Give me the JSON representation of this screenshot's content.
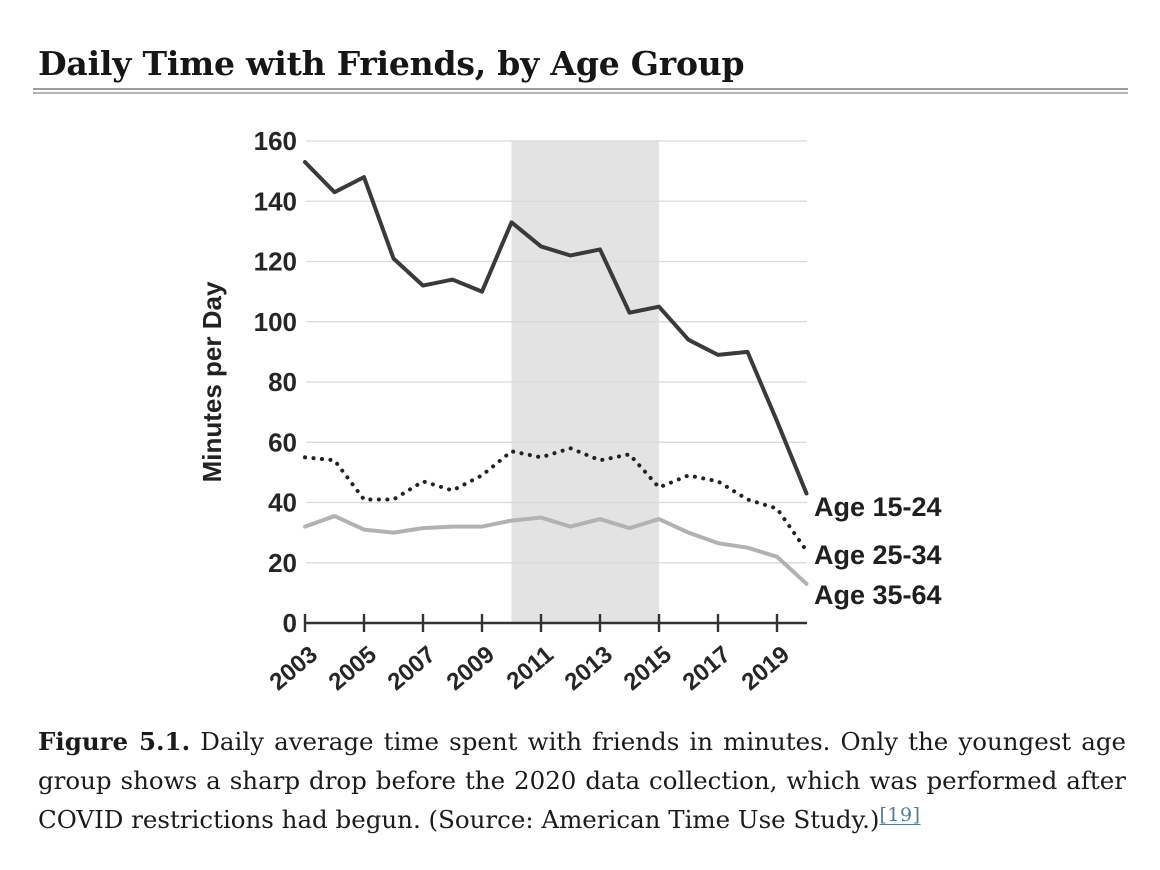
{
  "page": {
    "title": "Daily Time with Friends, by Age Group"
  },
  "chart_data": {
    "type": "line",
    "title": "Daily Time with Friends, by Age Group",
    "xlabel": "",
    "ylabel": "Minutes per Day",
    "ylim": [
      0,
      160
    ],
    "yticks": [
      0,
      20,
      40,
      60,
      80,
      100,
      120,
      140,
      160
    ],
    "grid": "horizontal",
    "grid_color": "#d9d9d9",
    "x": [
      2003,
      2004,
      2005,
      2006,
      2007,
      2008,
      2009,
      2010,
      2011,
      2012,
      2013,
      2014,
      2015,
      2016,
      2017,
      2018,
      2019,
      2020
    ],
    "xtick_labels": [
      "2003",
      "2005",
      "2007",
      "2009",
      "2011",
      "2013",
      "2015",
      "2017",
      "2019"
    ],
    "shaded_region": {
      "from": 2010,
      "to": 2015,
      "color": "#e3e3e3"
    },
    "legend_position": "right of line ends",
    "series": [
      {
        "name": "Age 15-24",
        "style": "solid",
        "color": "#3a3a3a",
        "values": [
          153,
          143,
          148,
          121,
          112,
          114,
          110,
          133,
          125,
          122,
          124,
          103,
          105,
          94,
          89,
          90,
          67,
          43
        ]
      },
      {
        "name": "Age 25-34",
        "style": "dotted",
        "color": "#222222",
        "values": [
          55,
          54,
          41,
          41,
          47,
          44,
          49,
          57,
          55,
          58,
          54,
          56,
          45,
          49,
          47,
          41,
          38,
          24
        ]
      },
      {
        "name": "Age 35-64",
        "style": "solid",
        "color": "#b2b2b2",
        "values": [
          32,
          35.5,
          31,
          30,
          31.5,
          32,
          32,
          34,
          35,
          32,
          34.5,
          31.5,
          34.5,
          30,
          26.5,
          25,
          22,
          13
        ]
      }
    ],
    "axis_color": "#333333",
    "tick_label_color": "#262626"
  },
  "caption": {
    "figure_label": "Figure 5.1.",
    "text": " Daily average time spent with friends in minutes. Only the youngest age group shows a sharp drop before the 2020 data collection, which was performed after COVID restrictions had begun. (Source: American Time Use Study.)",
    "citation": "[19]",
    "citation_color": "#567a99"
  }
}
